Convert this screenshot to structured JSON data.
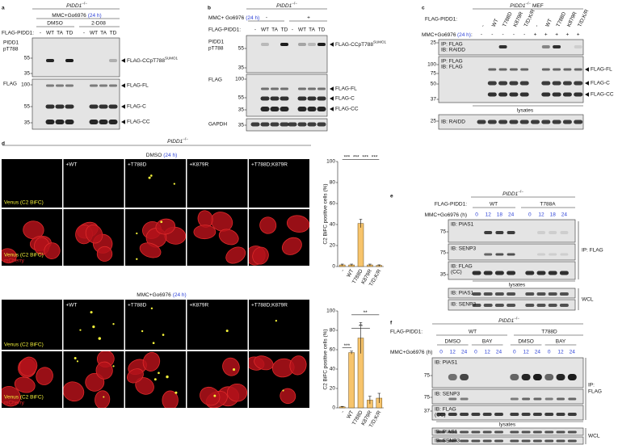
{
  "a": {
    "letter": "a",
    "genotype": "PIDD1",
    "genotype_sup": "−/−",
    "treatment": "MMC+Go6976",
    "time": "(24 h)",
    "conditions": [
      "DMSO",
      "2-D08"
    ],
    "construct": "FLAG-PIDD1:",
    "lanes": [
      "-",
      "WT",
      "TA",
      "TD",
      "-",
      "WT",
      "TA",
      "TD"
    ],
    "blots": [
      {
        "label": [
          "PIDD1",
          "pT788"
        ],
        "markers": [
          55,
          35
        ]
      },
      {
        "label": [
          "FLAG"
        ],
        "markers": [
          100,
          55,
          35
        ]
      }
    ],
    "band_sumo": "FLAG-CCpT788",
    "band_sumo_sup": "SUMO1",
    "bands": [
      "FLAG-FL",
      "FLAG-C",
      "FLAG-CC"
    ]
  },
  "b": {
    "letter": "b",
    "genotype": "PIDD1",
    "genotype_sup": "−/−",
    "treatment": "MMC+ Go6976",
    "time": "(24 h)",
    "signs": [
      "-",
      "+"
    ],
    "construct": "FLAG-PIDD1:",
    "lanes": [
      "-",
      "WT",
      "TA",
      "TD",
      "-",
      "WT",
      "TA",
      "TD"
    ],
    "blots": [
      {
        "label": [
          "PIDD1",
          "pT788"
        ],
        "markers": [
          55,
          35
        ]
      },
      {
        "label": [
          "FLAG"
        ],
        "markers": [
          100,
          55,
          35
        ]
      },
      {
        "label": [
          "GAPDH"
        ],
        "markers": [
          35
        ]
      }
    ],
    "band_sumo": "FLAG-CCpT788",
    "band_sumo_sup": "SUMO1",
    "bands": [
      "FLAG-FL",
      "FLAG-C",
      "FLAG-CC"
    ]
  },
  "c": {
    "letter": "c",
    "genotype": "PIDD1",
    "genotype_sup": "−/−",
    "cell": "MEF",
    "construct": "FLAG-PIDD1:",
    "lanes": [
      "-",
      "WT",
      "T788D",
      "K879R",
      "T/D;K/R",
      "-",
      "WT",
      "T788D",
      "K879R",
      "T/D;K/R"
    ],
    "treatment": "MMC+Go6976",
    "time": "(24 h)",
    "suffix": ":",
    "signs": [
      "-",
      "-",
      "-",
      "-",
      "-",
      "+",
      "+",
      "+",
      "+",
      "+"
    ],
    "blots": [
      {
        "label": [
          "IP: FLAG",
          "IB: RAIDD"
        ],
        "markers": [
          25
        ]
      },
      {
        "label": [
          "IP: FLAG",
          "IB: FLAG"
        ],
        "markers": [
          100,
          75,
          50,
          37
        ]
      },
      {
        "label": [
          "IB: RAIDD"
        ],
        "markers": [
          25
        ]
      }
    ],
    "section": "lysates",
    "bands": [
      "FLAG-FL",
      "FLAG-C",
      "FLAG-CC"
    ]
  },
  "d": {
    "letter": "d",
    "genotype": "PIDD1",
    "genotype_sup": "−/−",
    "blocks": [
      {
        "treatment": "DMSO",
        "time": "(24 h)",
        "columns": [
          "+WT",
          "+T788D",
          "+K879R",
          "+T788D;K879R"
        ],
        "row_labels": [
          "Venus (C2 BiFC)",
          "Venus (C2 BiFC)"
        ],
        "merge_label": "mCherry",
        "chart": {
          "type": "bar",
          "ylabel": "C2 BiFC positive cells (%)",
          "categories": [
            "-",
            "WT",
            "T788D",
            "K879R",
            "T/D;K/R"
          ],
          "values": [
            1.5,
            1.5,
            41,
            1.5,
            1
          ],
          "errors": [
            0.8,
            0.8,
            4,
            0.8,
            0.6
          ],
          "ylim": [
            0,
            100
          ],
          "yticks": [
            0,
            20,
            40,
            60,
            80,
            100
          ],
          "color": "#f7c46c",
          "significance": [
            "***",
            "***",
            "***",
            "***"
          ]
        }
      },
      {
        "treatment": "MMC+Go6976",
        "time": "(24 h)",
        "columns": [
          "+WT",
          "+T788D",
          "+K879R",
          "+T788D;K879R"
        ],
        "row_labels": [
          "Venus (C2 BiFC)",
          "Venus (C2 BiFC)"
        ],
        "merge_label": "mCherry",
        "chart": {
          "type": "bar",
          "ylabel": "C2 BiFC positive cells (%)",
          "categories": [
            "-",
            "WT",
            "T788D",
            "K879R",
            "T/D;K/R"
          ],
          "values": [
            1,
            57,
            72,
            8,
            10
          ],
          "errors": [
            0.5,
            1.5,
            16,
            4,
            5
          ],
          "ylim": [
            0,
            100
          ],
          "yticks": [
            0,
            20,
            40,
            60,
            80,
            100
          ],
          "color": "#f7c46c",
          "significance": [
            "***",
            "**",
            "**"
          ]
        }
      }
    ]
  },
  "e": {
    "letter": "e",
    "genotype": "PIDD1",
    "genotype_sup": "−/−",
    "construct": "FLAG-PIDD1:",
    "groups": [
      "WT",
      "T788A"
    ],
    "treatment": "MMC+Go6976",
    "unit": "(h)",
    "times": [
      0,
      12,
      18,
      24,
      0,
      12,
      18,
      24
    ],
    "blots": [
      {
        "label": [
          "IB: PIAS1"
        ],
        "markers": [
          75
        ]
      },
      {
        "label": [
          "IB: SENP3"
        ],
        "markers": [
          75
        ]
      },
      {
        "label": [
          "IB: FLAG",
          "(CC)"
        ],
        "markers": [
          35
        ]
      }
    ],
    "ip": [
      "IP: FLAG"
    ],
    "section": "lysates",
    "lysate_blots": [
      "IB: PIAS1",
      "IB: SENP3"
    ],
    "wcl": "WCL"
  },
  "f": {
    "letter": "f",
    "genotype": "PIDD1",
    "genotype_sup": "−/−",
    "construct": "FLAG-PIDD1:",
    "groups": [
      "WT",
      "T788D"
    ],
    "conditions": [
      "DMSO",
      "BAY",
      "DMSO",
      "BAY"
    ],
    "treatment": "MMC+Go6976",
    "unit": "(h)",
    "times": [
      0,
      12,
      24,
      0,
      12,
      24,
      0,
      12,
      24,
      0,
      12,
      24
    ],
    "blots": [
      {
        "label": [
          "IB: PIAS1"
        ],
        "markers": [
          75
        ]
      },
      {
        "label": [
          "IB: SENP3"
        ],
        "markers": [
          75
        ]
      },
      {
        "label": [
          "IB: FLAG",
          "(CC)"
        ],
        "markers": [
          37
        ]
      }
    ],
    "ip": [
      "IP:",
      "FLAG"
    ],
    "section": "lysates",
    "lysate_blots": [
      "IB: PIAS1",
      "IB: SENP3"
    ],
    "wcl": "WCL"
  }
}
